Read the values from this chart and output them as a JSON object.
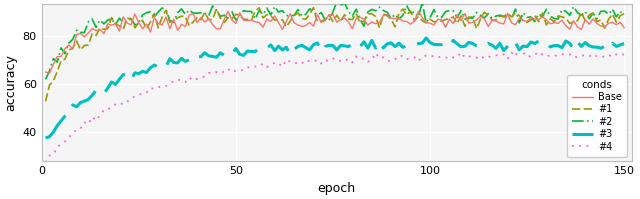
{
  "title": "",
  "xlabel": "epoch",
  "ylabel": "accuracy",
  "legend_title": "conds",
  "legend_labels": [
    "Base",
    "#1",
    "#2",
    "#3",
    "#4"
  ],
  "colors": {
    "Base": "#F8766D",
    "#1": "#999900",
    "#2": "#00BA38",
    "#3": "#00BFC4",
    "#4": "#FF61CC"
  },
  "xlim": [
    0,
    152
  ],
  "ylim": [
    28,
    93
  ],
  "yticks": [
    40,
    60,
    80
  ],
  "xticks": [
    0,
    50,
    100,
    150
  ],
  "background_color": "#FFFFFF",
  "panel_color": "#F5F5F5",
  "grid_color": "#FFFFFF",
  "seed": 7,
  "n_points": 150
}
